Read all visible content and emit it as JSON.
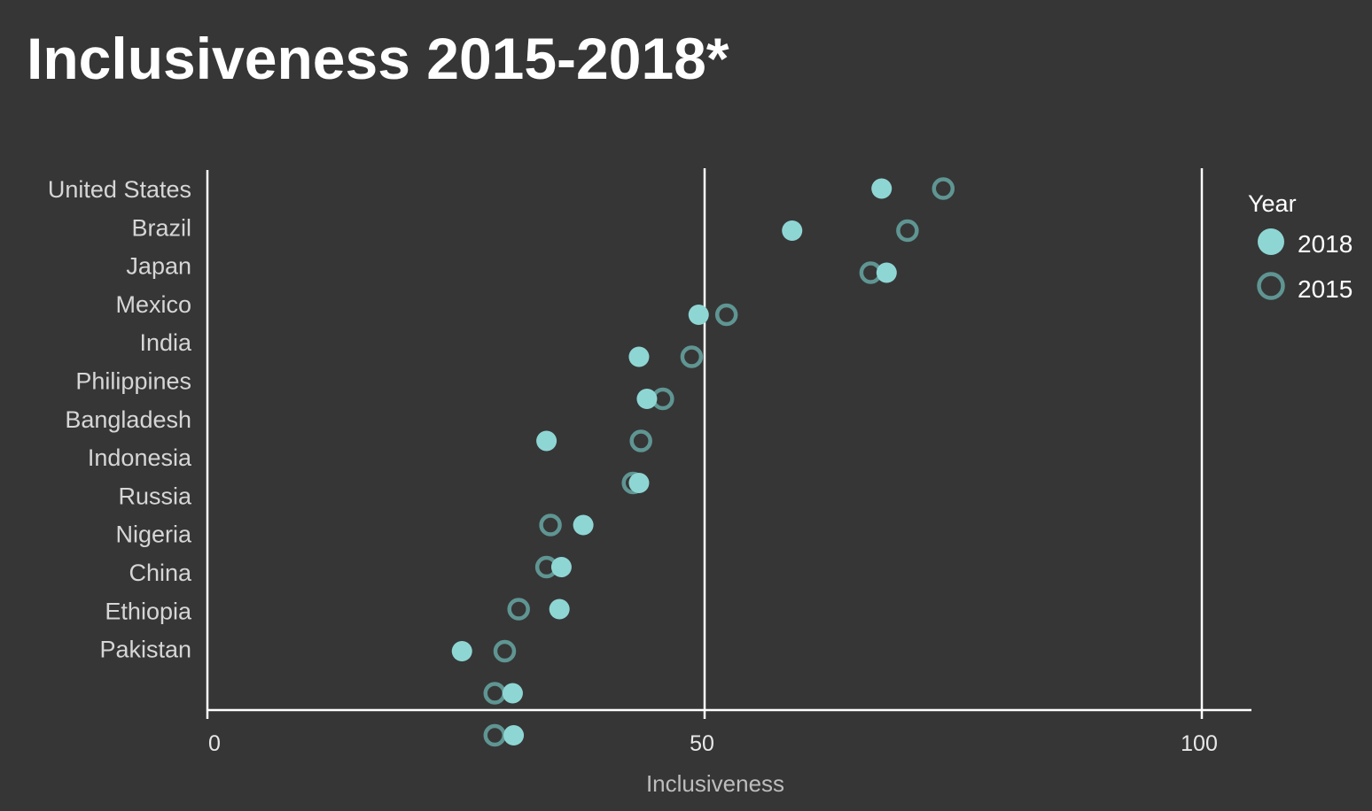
{
  "title": "Inclusiveness 2015-2018*",
  "colors": {
    "background": "#363636",
    "y2018": "#8ed6d4",
    "y2015": "#5f9592",
    "axis": "#ffffff"
  },
  "chart_data": {
    "type": "scatter",
    "title": "Inclusiveness 2015-2018*",
    "xlabel": "Inclusiveness",
    "ylabel": "",
    "xlim": [
      0,
      100
    ],
    "xticks": [
      "0",
      "50",
      "100"
    ],
    "grid": "vertical at 50 and 100",
    "legend": {
      "title": "Year",
      "position": "right",
      "entries": [
        "2018",
        "2015"
      ]
    },
    "categories": [
      "United States",
      "Brazil",
      "Japan",
      "Mexico",
      "India",
      "Philippines",
      "Bangladesh",
      "Indonesia",
      "Russia",
      "Nigeria",
      "China",
      "Ethiopia",
      "Pakistan",
      ""
    ],
    "series": [
      {
        "name": "2018",
        "marker": "filled",
        "values": [
          67.8,
          58.8,
          68.3,
          49.4,
          43.4,
          44.2,
          34.1,
          43.4,
          37.8,
          35.6,
          35.4,
          25.6,
          30.7
        ]
      },
      {
        "name": "2015",
        "marker": "hollow",
        "values": [
          74.0,
          70.4,
          66.7,
          52.2,
          48.7,
          45.8,
          43.6,
          42.8,
          34.5,
          34.1,
          31.3,
          29.9,
          28.9
        ]
      }
    ],
    "unlabeled_row": {
      "2018": 30.8,
      "2015": 28.9
    }
  }
}
